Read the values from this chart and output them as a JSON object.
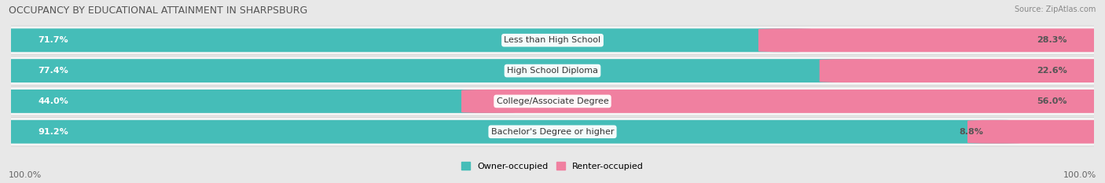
{
  "title": "OCCUPANCY BY EDUCATIONAL ATTAINMENT IN SHARPSBURG",
  "source": "Source: ZipAtlas.com",
  "categories": [
    "Less than High School",
    "High School Diploma",
    "College/Associate Degree",
    "Bachelor's Degree or higher"
  ],
  "owner_pct": [
    71.7,
    77.4,
    44.0,
    91.2
  ],
  "renter_pct": [
    28.3,
    22.6,
    56.0,
    8.8
  ],
  "owner_color": "#45BDB8",
  "renter_color": "#F080A0",
  "owner_label": "Owner-occupied",
  "renter_label": "Renter-occupied",
  "background_color": "#e8e8e8",
  "row_bg_color": "#f5f5f5",
  "axis_label_left": "100.0%",
  "axis_label_right": "100.0%",
  "figsize": [
    14.06,
    2.33
  ],
  "dpi": 100
}
